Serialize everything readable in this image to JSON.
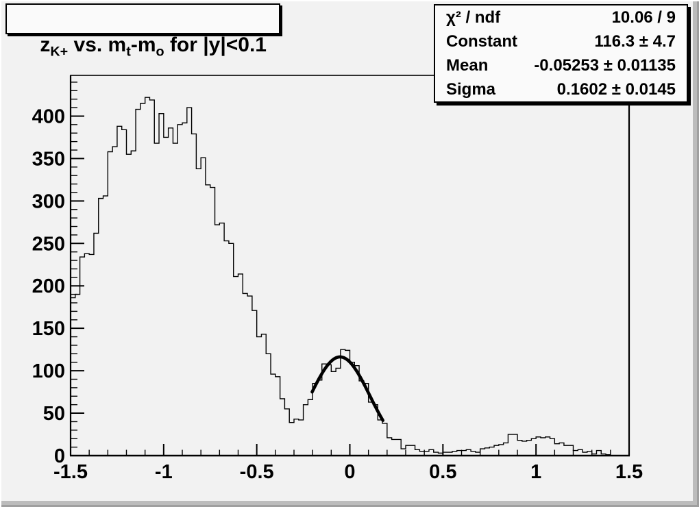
{
  "canvas": {
    "background": "#f2f2f2",
    "pave_background": "#fafafa",
    "line_color": "#000000"
  },
  "title_box": {
    "title_plain": "z_K+ vs. m_t-m_o for |y|<0.1",
    "segments": [
      {
        "text": "z",
        "sub": false
      },
      {
        "text": "K+",
        "sub": true
      },
      {
        "text": " vs. m",
        "sub": false
      },
      {
        "text": "t",
        "sub": true
      },
      {
        "text": "-m",
        "sub": false
      },
      {
        "text": "o",
        "sub": true
      },
      {
        "text": " for |y|<0.1",
        "sub": false
      }
    ]
  },
  "stats_box": {
    "rows": [
      {
        "label": "χ² / ndf",
        "value": "10.06 / 9"
      },
      {
        "label": "Constant",
        "value": "116.3 ± 4.7"
      },
      {
        "label": "Mean",
        "value": "-0.05253 ± 0.01135"
      },
      {
        "label": "Sigma",
        "value": "0.1602 ± 0.0145"
      }
    ]
  },
  "chart_data": {
    "type": "bar",
    "subtype": "step-histogram",
    "title": "z_K+ vs. m_t-m_o for |y|<0.1",
    "xlabel": "",
    "ylabel": "",
    "x_range": [
      -1.5,
      1.5
    ],
    "y_range": [
      0,
      448
    ],
    "bin_start": -1.5,
    "bin_width": 0.025,
    "grid": false,
    "counts": [
      186,
      190,
      234,
      238,
      237,
      262,
      303,
      306,
      358,
      364,
      388,
      384,
      355,
      359,
      408,
      415,
      422,
      419,
      368,
      403,
      375,
      386,
      368,
      390,
      392,
      410,
      379,
      338,
      351,
      319,
      316,
      272,
      274,
      253,
      250,
      211,
      214,
      191,
      188,
      171,
      140,
      143,
      120,
      96,
      93,
      67,
      55,
      39,
      43,
      42,
      60,
      66,
      85,
      89,
      108,
      107,
      99,
      103,
      125,
      124,
      110,
      106,
      88,
      85,
      63,
      60,
      42,
      38,
      21,
      19,
      19,
      8,
      12,
      12,
      7,
      5,
      5,
      7,
      4,
      3,
      4,
      4,
      5,
      6,
      6,
      7,
      5,
      4,
      8,
      9,
      10,
      12,
      13,
      15,
      25,
      25,
      18,
      17,
      18,
      20,
      22,
      21,
      22,
      20,
      14,
      15,
      12,
      12,
      6,
      7,
      4,
      5,
      2,
      6,
      2,
      1,
      0,
      0,
      0,
      0
    ],
    "x_axis": {
      "tick_values": [
        -1.5,
        -1,
        -0.5,
        0,
        0.5,
        1,
        1.5
      ],
      "tick_labels": [
        "-1.5",
        "-1",
        "-0.5",
        "0",
        "0.5",
        "1",
        "1.5"
      ],
      "minor_step": 0.1
    },
    "y_axis": {
      "tick_step": 50,
      "tick_values": [
        0,
        50,
        100,
        150,
        200,
        250,
        300,
        350,
        400
      ],
      "tick_labels": [
        "0",
        "50",
        "100",
        "150",
        "200",
        "250",
        "300",
        "350",
        "400"
      ],
      "minor_step": 10
    },
    "fit": {
      "type": "gaussian",
      "chi2": 10.06,
      "ndf": 9,
      "constant": 116.3,
      "constant_err": 4.7,
      "mean": -0.05253,
      "mean_err": 0.01135,
      "sigma": 0.1602,
      "sigma_err": 0.0145,
      "draw_range": [
        -0.2025,
        0.1775
      ]
    }
  }
}
